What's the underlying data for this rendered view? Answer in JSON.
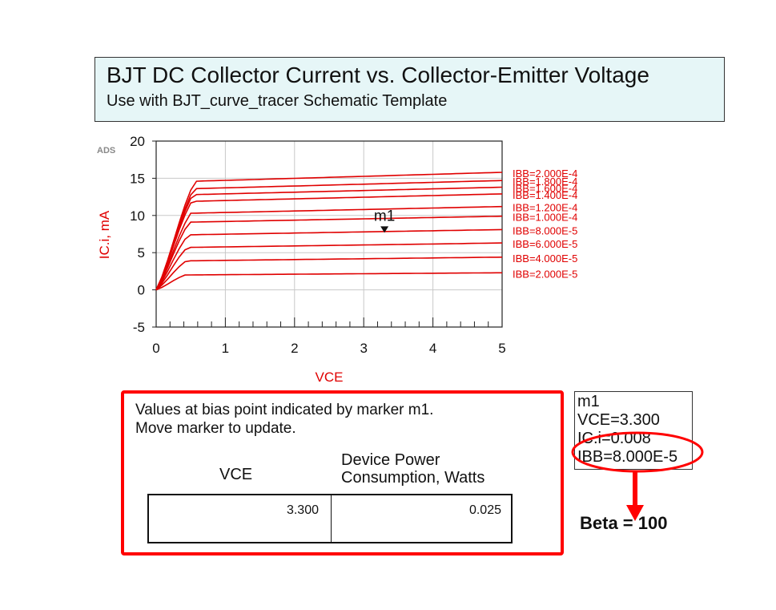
{
  "header": {
    "title": "BJT DC Collector Current vs. Collector-Emitter Voltage",
    "subtitle": "Use with BJT_curve_tracer Schematic Template"
  },
  "chart_data": {
    "type": "line",
    "watermark": "ADS",
    "xlabel": "VCE",
    "ylabel": "IC.i, mA",
    "xlim": [
      0,
      5
    ],
    "ylim": [
      -5,
      20
    ],
    "xticks": [
      0,
      1,
      2,
      3,
      4,
      5
    ],
    "yticks": [
      -5,
      0,
      5,
      10,
      15,
      20
    ],
    "grid": true,
    "line_color": "#e00000",
    "series": [
      {
        "name": "IBB=2.000E-5",
        "sat_ma": 2.0,
        "end_ma": 2.3
      },
      {
        "name": "IBB=4.000E-5",
        "sat_ma": 3.9,
        "end_ma": 4.4
      },
      {
        "name": "IBB=6.000E-5",
        "sat_ma": 5.7,
        "end_ma": 6.3
      },
      {
        "name": "IBB=8.000E-5",
        "sat_ma": 7.4,
        "end_ma": 8.1
      },
      {
        "name": "IBB=1.000E-4",
        "sat_ma": 9.1,
        "end_ma": 9.9
      },
      {
        "name": "IBB=1.200E-4",
        "sat_ma": 10.3,
        "end_ma": 11.2
      },
      {
        "name": "IBB=1.400E-4",
        "sat_ma": 11.9,
        "end_ma": 12.9
      },
      {
        "name": "IBB=1.600E-4",
        "sat_ma": 12.8,
        "end_ma": 13.8
      },
      {
        "name": "IBB=1.800E-4",
        "sat_ma": 13.6,
        "end_ma": 14.7
      },
      {
        "name": "IBB=2.000E-4",
        "sat_ma": 14.6,
        "end_ma": 15.8
      }
    ],
    "marker": {
      "name": "m1",
      "x": 3.3,
      "y": 8.0
    }
  },
  "panel": {
    "line1": "Values at bias point indicated by marker m1.",
    "line2": "Move marker to update.",
    "col1_header": "VCE",
    "col2_header_line1": "Device Power",
    "col2_header_line2": "Consumption, Watts",
    "vce_value": "3.300",
    "power_value": "0.025"
  },
  "readout": {
    "name": "m1",
    "vce": "VCE=3.300",
    "ic": "IC.i=0.008",
    "ibb": "IBB=8.000E-5"
  },
  "annotation": {
    "beta": "Beta = 100",
    "color": "#ff0000"
  }
}
